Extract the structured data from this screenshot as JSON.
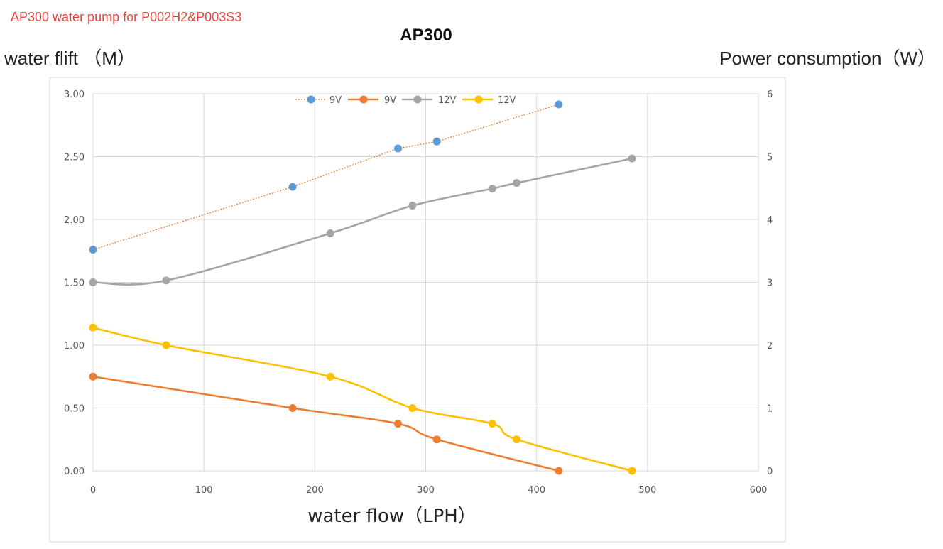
{
  "header": {
    "caption": "AP300 water pump for P002H2&P003S3"
  },
  "chart_data": {
    "type": "line",
    "title": "AP300",
    "xlabel": "water flow（LPH）",
    "ylabel_left": "water flift （M）",
    "ylabel_right": "Power consumption（W）",
    "xlim": [
      0,
      600
    ],
    "xticks": [
      "0",
      "100",
      "200",
      "300",
      "400",
      "500",
      "600"
    ],
    "ylim_left": [
      0,
      3
    ],
    "yticks_left": [
      "0.00",
      "0.50",
      "1.00",
      "1.50",
      "2.00",
      "2.50",
      "3.00"
    ],
    "ylim_right": [
      0,
      6
    ],
    "yticks_right": [
      "0",
      "1",
      "2",
      "3",
      "4",
      "5",
      "6"
    ],
    "grid": "vertical and horizontal",
    "legend_position": "top-center",
    "series": [
      {
        "name": "9V",
        "axis": "right",
        "color": "#5b9bd5",
        "line_style": "dotted",
        "line_color": "#ed7d31",
        "x": [
          0,
          180,
          275,
          310,
          420
        ],
        "y": [
          3.52,
          4.52,
          5.13,
          5.24,
          5.83
        ]
      },
      {
        "name": "9V",
        "axis": "left",
        "color": "#ed7d31",
        "line_style": "solid",
        "x": [
          0,
          180,
          275,
          310,
          420
        ],
        "y": [
          0.75,
          0.5,
          0.375,
          0.25,
          0.0
        ]
      },
      {
        "name": "12V",
        "axis": "right",
        "color": "#a5a5a5",
        "line_style": "solid",
        "x": [
          0,
          66,
          214,
          288,
          360,
          382,
          486
        ],
        "y": [
          3.0,
          3.03,
          3.78,
          4.22,
          4.49,
          4.58,
          4.97
        ]
      },
      {
        "name": "12V",
        "axis": "left",
        "color": "#ffc000",
        "line_style": "solid",
        "x": [
          0,
          66,
          214,
          288,
          360,
          382,
          486
        ],
        "y": [
          1.14,
          1.0,
          0.75,
          0.5,
          0.375,
          0.25,
          0.0
        ]
      }
    ]
  }
}
